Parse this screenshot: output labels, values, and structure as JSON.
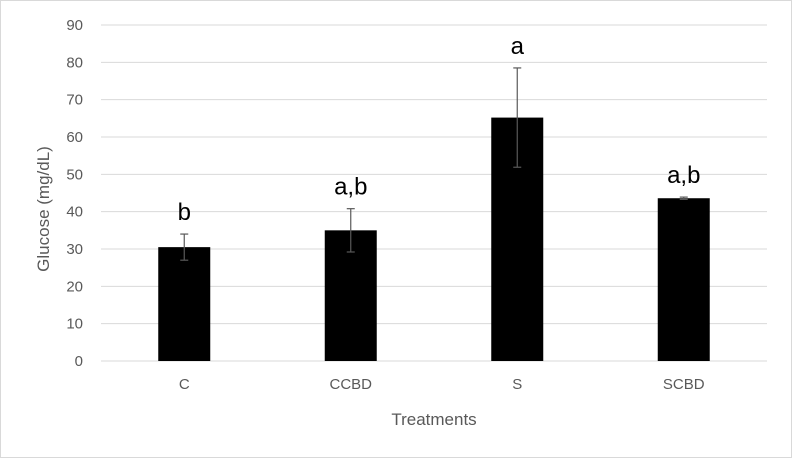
{
  "chart_data": {
    "type": "bar",
    "categories": [
      "C",
      "CCBD",
      "S",
      "SCBD"
    ],
    "values": [
      30.5,
      35.0,
      65.2,
      43.6
    ],
    "errors": [
      3.5,
      5.8,
      13.3,
      0.3
    ],
    "significance_labels": [
      "b",
      "a,b",
      "a",
      "a,b"
    ],
    "xlabel": "Treatments",
    "ylabel": "Glucose (mg/dL)",
    "ylim": [
      0,
      90
    ],
    "yticks": [
      0,
      10,
      20,
      30,
      40,
      50,
      60,
      70,
      80,
      90
    ],
    "grid": true,
    "bar_color": "#000000",
    "grid_color": "#d9d9d9",
    "error_bar_color": "#595959"
  }
}
